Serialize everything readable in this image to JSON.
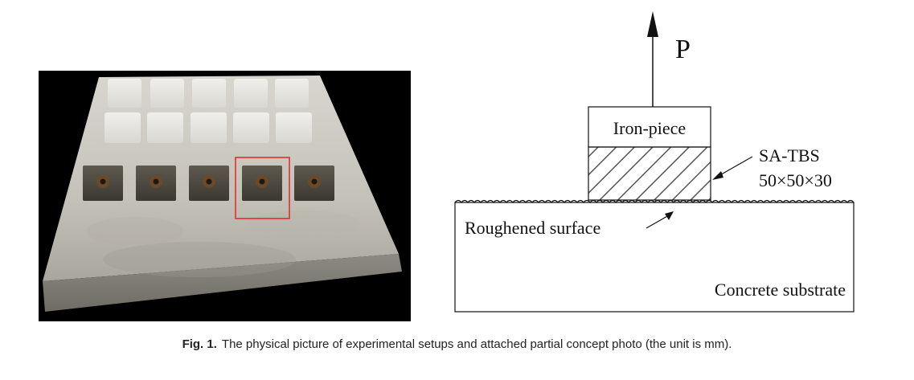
{
  "diagram": {
    "force_label": "P",
    "iron_piece_label": "Iron-piece",
    "specimen_label": "SA-TBS",
    "specimen_dims": "50×50×30",
    "surface_label": "Roughened surface",
    "substrate_label": "Concrete substrate"
  },
  "caption": {
    "label": "Fig. 1.",
    "text": "The physical picture of experimental setups and attached partial concept photo (the unit is mm)."
  },
  "colors": {
    "highlight": "#e03030",
    "photo_background": "#000000",
    "slab": "#c9c6bd"
  }
}
